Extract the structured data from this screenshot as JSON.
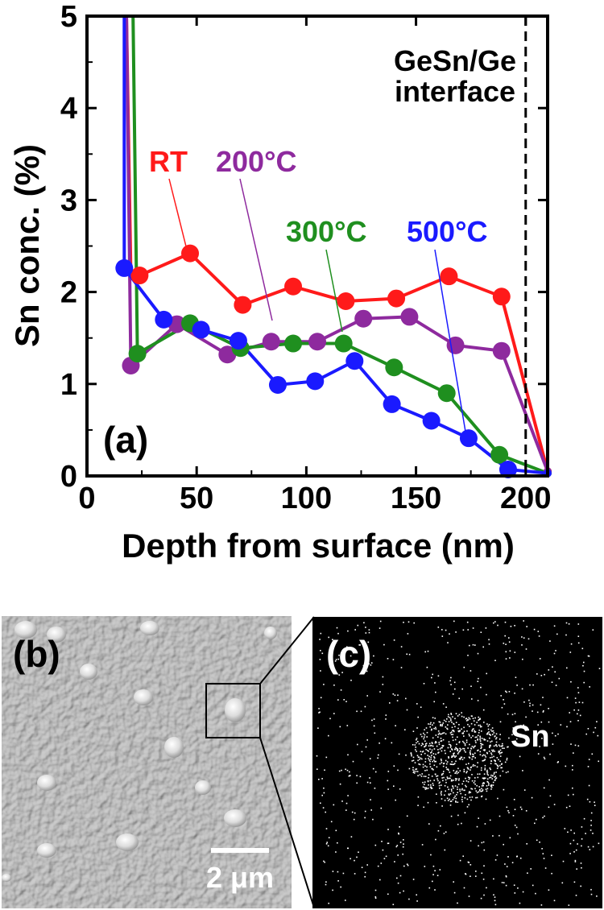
{
  "chart_data": {
    "type": "line",
    "xlabel": "Depth from surface (nm)",
    "ylabel": "Sn conc. (%)",
    "xlim": [
      0,
      210
    ],
    "ylim": [
      0,
      5
    ],
    "xticks": [
      "0",
      "50",
      "100",
      "150",
      "200"
    ],
    "yticks": [
      "0",
      "1",
      "2",
      "3",
      "4",
      "5"
    ],
    "panel_label": "(a)",
    "interface_label_line1": "GeSn/Ge",
    "interface_label_line2": "interface",
    "interface_x": 200,
    "series": [
      {
        "name": "RT",
        "color": "#ff1a1a",
        "x": [
          24,
          47,
          71,
          94,
          118,
          141,
          165,
          189,
          210
        ],
        "y": [
          2.18,
          2.42,
          1.86,
          2.06,
          1.9,
          1.93,
          2.17,
          1.95,
          0.05
        ],
        "spike_x": [
          18,
          20
        ]
      },
      {
        "name": "200°C",
        "color": "#8e2a9e",
        "x": [
          20,
          41,
          64,
          84,
          105,
          126,
          147,
          168,
          189,
          210
        ],
        "y": [
          1.2,
          1.65,
          1.32,
          1.46,
          1.46,
          1.71,
          1.73,
          1.42,
          1.36,
          0.05
        ],
        "spike_x": [
          18,
          20
        ]
      },
      {
        "name": "300°C",
        "color": "#1f8f1f",
        "x": [
          23,
          47,
          70,
          94,
          117,
          140,
          164,
          188,
          210
        ],
        "y": [
          1.33,
          1.66,
          1.39,
          1.44,
          1.44,
          1.18,
          0.9,
          0.23,
          0.03
        ],
        "spike_x": [
          21,
          23
        ]
      },
      {
        "name": "500°C",
        "color": "#1a1aff",
        "x": [
          17,
          35,
          52,
          69,
          87,
          104,
          122,
          139,
          157,
          174,
          192,
          210
        ],
        "y": [
          2.26,
          1.7,
          1.59,
          1.47,
          0.99,
          1.03,
          1.25,
          0.78,
          0.6,
          0.41,
          0.07,
          0.03
        ],
        "spike_x": [
          17,
          17
        ]
      }
    ]
  },
  "sem": {
    "panel_label": "(b)",
    "scale_label": "2 μm"
  },
  "edx": {
    "panel_label": "(c)",
    "element_label": "Sn"
  }
}
